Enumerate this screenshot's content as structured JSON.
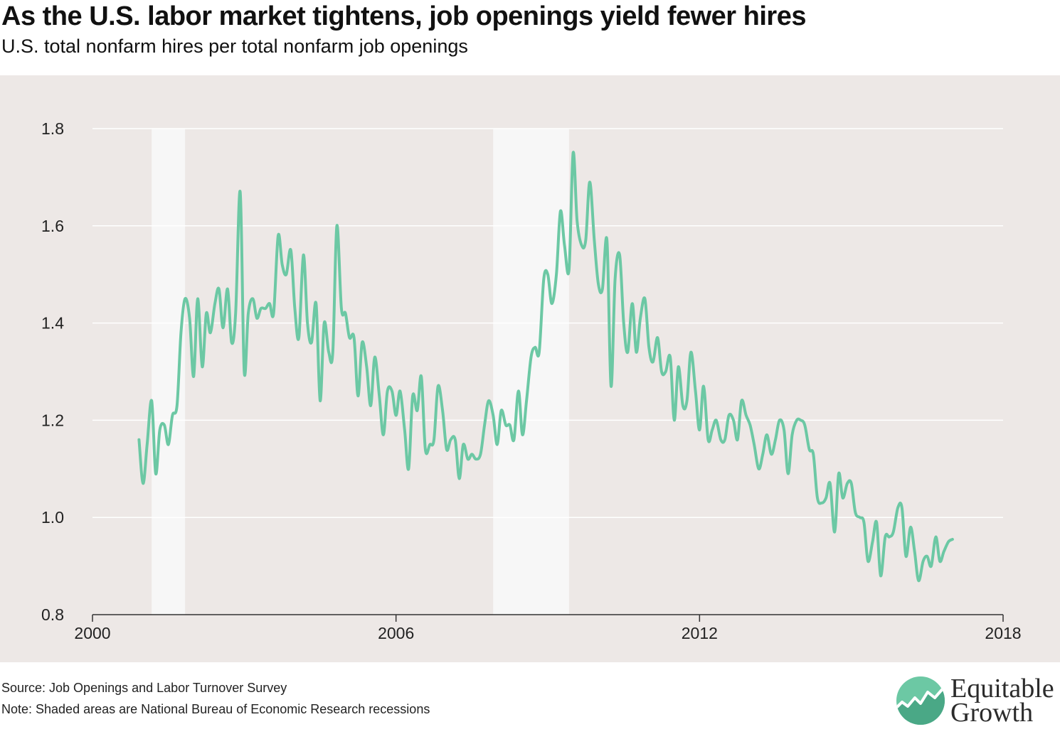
{
  "header": {
    "title": "As the U.S. labor market tightens, job openings yield fewer hires",
    "subtitle": "U.S. total nonfarm hires per total nonfarm job openings"
  },
  "footer": {
    "source": "Source: Job Openings and Labor Turnover Survey",
    "note": "Note: Shaded areas are National Bureau of Economic Research recessions"
  },
  "logo": {
    "line1": "Equitable",
    "line2": "Growth",
    "icon": "rising-line-circle-icon"
  },
  "colors": {
    "line": "#6cc8a4",
    "panel": "#ede8e6",
    "recession": "#f7f7f7",
    "grid": "#ffffff"
  },
  "chart_data": {
    "type": "line",
    "title": "As the U.S. labor market tightens, job openings yield fewer hires",
    "subtitle": "U.S. total nonfarm hires per total nonfarm job openings",
    "xlabel": "",
    "ylabel": "",
    "xlim": [
      2000,
      2018
    ],
    "ylim": [
      0.8,
      1.8
    ],
    "xticks": [
      2000,
      2006,
      2012,
      2018
    ],
    "yticks": [
      0.8,
      1.0,
      1.2,
      1.4,
      1.6,
      1.8
    ],
    "ytick_labels": [
      "0.8",
      "1.0",
      "1.2",
      "1.4",
      "1.6",
      "1.8"
    ],
    "grid": "horizontal",
    "recessions": [
      {
        "start": 2001.17,
        "end": 2001.83
      },
      {
        "start": 2007.92,
        "end": 2009.42
      }
    ],
    "series": [
      {
        "values": [
          [
            2000.92,
            1.16
          ],
          [
            2001.0,
            1.07
          ],
          [
            2001.08,
            1.15
          ],
          [
            2001.17,
            1.24
          ],
          [
            2001.25,
            1.09
          ],
          [
            2001.33,
            1.18
          ],
          [
            2001.42,
            1.19
          ],
          [
            2001.5,
            1.15
          ],
          [
            2001.58,
            1.21
          ],
          [
            2001.67,
            1.23
          ],
          [
            2001.75,
            1.38
          ],
          [
            2001.83,
            1.45
          ],
          [
            2001.92,
            1.41
          ],
          [
            2002.0,
            1.29
          ],
          [
            2002.08,
            1.45
          ],
          [
            2002.17,
            1.31
          ],
          [
            2002.25,
            1.42
          ],
          [
            2002.33,
            1.38
          ],
          [
            2002.42,
            1.44
          ],
          [
            2002.5,
            1.47
          ],
          [
            2002.58,
            1.39
          ],
          [
            2002.67,
            1.47
          ],
          [
            2002.75,
            1.36
          ],
          [
            2002.83,
            1.42
          ],
          [
            2002.92,
            1.67
          ],
          [
            2003.0,
            1.3
          ],
          [
            2003.08,
            1.42
          ],
          [
            2003.17,
            1.45
          ],
          [
            2003.25,
            1.41
          ],
          [
            2003.33,
            1.43
          ],
          [
            2003.42,
            1.43
          ],
          [
            2003.5,
            1.44
          ],
          [
            2003.58,
            1.42
          ],
          [
            2003.67,
            1.58
          ],
          [
            2003.75,
            1.52
          ],
          [
            2003.83,
            1.5
          ],
          [
            2003.92,
            1.55
          ],
          [
            2004.0,
            1.43
          ],
          [
            2004.08,
            1.37
          ],
          [
            2004.17,
            1.54
          ],
          [
            2004.25,
            1.4
          ],
          [
            2004.33,
            1.36
          ],
          [
            2004.42,
            1.44
          ],
          [
            2004.5,
            1.24
          ],
          [
            2004.58,
            1.4
          ],
          [
            2004.67,
            1.34
          ],
          [
            2004.75,
            1.34
          ],
          [
            2004.83,
            1.6
          ],
          [
            2004.92,
            1.43
          ],
          [
            2005.0,
            1.42
          ],
          [
            2005.08,
            1.37
          ],
          [
            2005.17,
            1.37
          ],
          [
            2005.25,
            1.25
          ],
          [
            2005.33,
            1.36
          ],
          [
            2005.42,
            1.31
          ],
          [
            2005.5,
            1.23
          ],
          [
            2005.58,
            1.33
          ],
          [
            2005.67,
            1.25
          ],
          [
            2005.75,
            1.17
          ],
          [
            2005.83,
            1.26
          ],
          [
            2005.92,
            1.26
          ],
          [
            2006.0,
            1.21
          ],
          [
            2006.08,
            1.26
          ],
          [
            2006.17,
            1.18
          ],
          [
            2006.25,
            1.1
          ],
          [
            2006.33,
            1.25
          ],
          [
            2006.42,
            1.22
          ],
          [
            2006.5,
            1.29
          ],
          [
            2006.58,
            1.14
          ],
          [
            2006.67,
            1.15
          ],
          [
            2006.75,
            1.16
          ],
          [
            2006.83,
            1.27
          ],
          [
            2006.92,
            1.22
          ],
          [
            2007.0,
            1.14
          ],
          [
            2007.08,
            1.16
          ],
          [
            2007.17,
            1.16
          ],
          [
            2007.25,
            1.08
          ],
          [
            2007.33,
            1.15
          ],
          [
            2007.42,
            1.12
          ],
          [
            2007.5,
            1.13
          ],
          [
            2007.58,
            1.12
          ],
          [
            2007.67,
            1.13
          ],
          [
            2007.75,
            1.19
          ],
          [
            2007.83,
            1.24
          ],
          [
            2007.92,
            1.21
          ],
          [
            2008.0,
            1.15
          ],
          [
            2008.08,
            1.22
          ],
          [
            2008.17,
            1.19
          ],
          [
            2008.25,
            1.19
          ],
          [
            2008.33,
            1.16
          ],
          [
            2008.42,
            1.26
          ],
          [
            2008.5,
            1.17
          ],
          [
            2008.58,
            1.24
          ],
          [
            2008.67,
            1.33
          ],
          [
            2008.75,
            1.35
          ],
          [
            2008.83,
            1.34
          ],
          [
            2008.92,
            1.49
          ],
          [
            2009.0,
            1.5
          ],
          [
            2009.08,
            1.44
          ],
          [
            2009.17,
            1.5
          ],
          [
            2009.25,
            1.63
          ],
          [
            2009.33,
            1.56
          ],
          [
            2009.42,
            1.51
          ],
          [
            2009.5,
            1.75
          ],
          [
            2009.58,
            1.61
          ],
          [
            2009.67,
            1.56
          ],
          [
            2009.75,
            1.57
          ],
          [
            2009.83,
            1.69
          ],
          [
            2009.92,
            1.57
          ],
          [
            2010.0,
            1.48
          ],
          [
            2010.08,
            1.47
          ],
          [
            2010.17,
            1.57
          ],
          [
            2010.25,
            1.27
          ],
          [
            2010.33,
            1.49
          ],
          [
            2010.42,
            1.54
          ],
          [
            2010.5,
            1.4
          ],
          [
            2010.58,
            1.34
          ],
          [
            2010.67,
            1.44
          ],
          [
            2010.75,
            1.34
          ],
          [
            2010.83,
            1.41
          ],
          [
            2010.92,
            1.45
          ],
          [
            2011.0,
            1.35
          ],
          [
            2011.08,
            1.32
          ],
          [
            2011.17,
            1.37
          ],
          [
            2011.25,
            1.3
          ],
          [
            2011.33,
            1.3
          ],
          [
            2011.42,
            1.33
          ],
          [
            2011.5,
            1.2
          ],
          [
            2011.58,
            1.31
          ],
          [
            2011.67,
            1.23
          ],
          [
            2011.75,
            1.24
          ],
          [
            2011.83,
            1.34
          ],
          [
            2011.92,
            1.26
          ],
          [
            2012.0,
            1.18
          ],
          [
            2012.08,
            1.27
          ],
          [
            2012.17,
            1.16
          ],
          [
            2012.25,
            1.18
          ],
          [
            2012.33,
            1.2
          ],
          [
            2012.42,
            1.16
          ],
          [
            2012.5,
            1.16
          ],
          [
            2012.58,
            1.21
          ],
          [
            2012.67,
            1.2
          ],
          [
            2012.75,
            1.16
          ],
          [
            2012.83,
            1.24
          ],
          [
            2012.92,
            1.21
          ],
          [
            2013.0,
            1.19
          ],
          [
            2013.08,
            1.15
          ],
          [
            2013.17,
            1.1
          ],
          [
            2013.25,
            1.13
          ],
          [
            2013.33,
            1.17
          ],
          [
            2013.42,
            1.13
          ],
          [
            2013.5,
            1.16
          ],
          [
            2013.58,
            1.2
          ],
          [
            2013.67,
            1.18
          ],
          [
            2013.75,
            1.09
          ],
          [
            2013.83,
            1.17
          ],
          [
            2013.92,
            1.2
          ],
          [
            2014.0,
            1.2
          ],
          [
            2014.08,
            1.19
          ],
          [
            2014.17,
            1.14
          ],
          [
            2014.25,
            1.13
          ],
          [
            2014.33,
            1.04
          ],
          [
            2014.42,
            1.03
          ],
          [
            2014.5,
            1.04
          ],
          [
            2014.58,
            1.07
          ],
          [
            2014.67,
            0.97
          ],
          [
            2014.75,
            1.09
          ],
          [
            2014.83,
            1.04
          ],
          [
            2014.92,
            1.07
          ],
          [
            2015.0,
            1.07
          ],
          [
            2015.08,
            1.01
          ],
          [
            2015.17,
            1.0
          ],
          [
            2015.25,
            0.99
          ],
          [
            2015.33,
            0.91
          ],
          [
            2015.42,
            0.95
          ],
          [
            2015.5,
            0.99
          ],
          [
            2015.58,
            0.88
          ],
          [
            2015.67,
            0.96
          ],
          [
            2015.75,
            0.96
          ],
          [
            2015.83,
            0.97
          ],
          [
            2015.92,
            1.02
          ],
          [
            2016.0,
            1.02
          ],
          [
            2016.08,
            0.92
          ],
          [
            2016.17,
            0.98
          ],
          [
            2016.25,
            0.93
          ],
          [
            2016.33,
            0.87
          ],
          [
            2016.42,
            0.91
          ],
          [
            2016.5,
            0.92
          ],
          [
            2016.58,
            0.9
          ],
          [
            2016.67,
            0.96
          ],
          [
            2016.75,
            0.91
          ],
          [
            2016.83,
            0.93
          ],
          [
            2016.92,
            0.95
          ],
          [
            2017.0,
            0.955
          ]
        ]
      }
    ]
  }
}
